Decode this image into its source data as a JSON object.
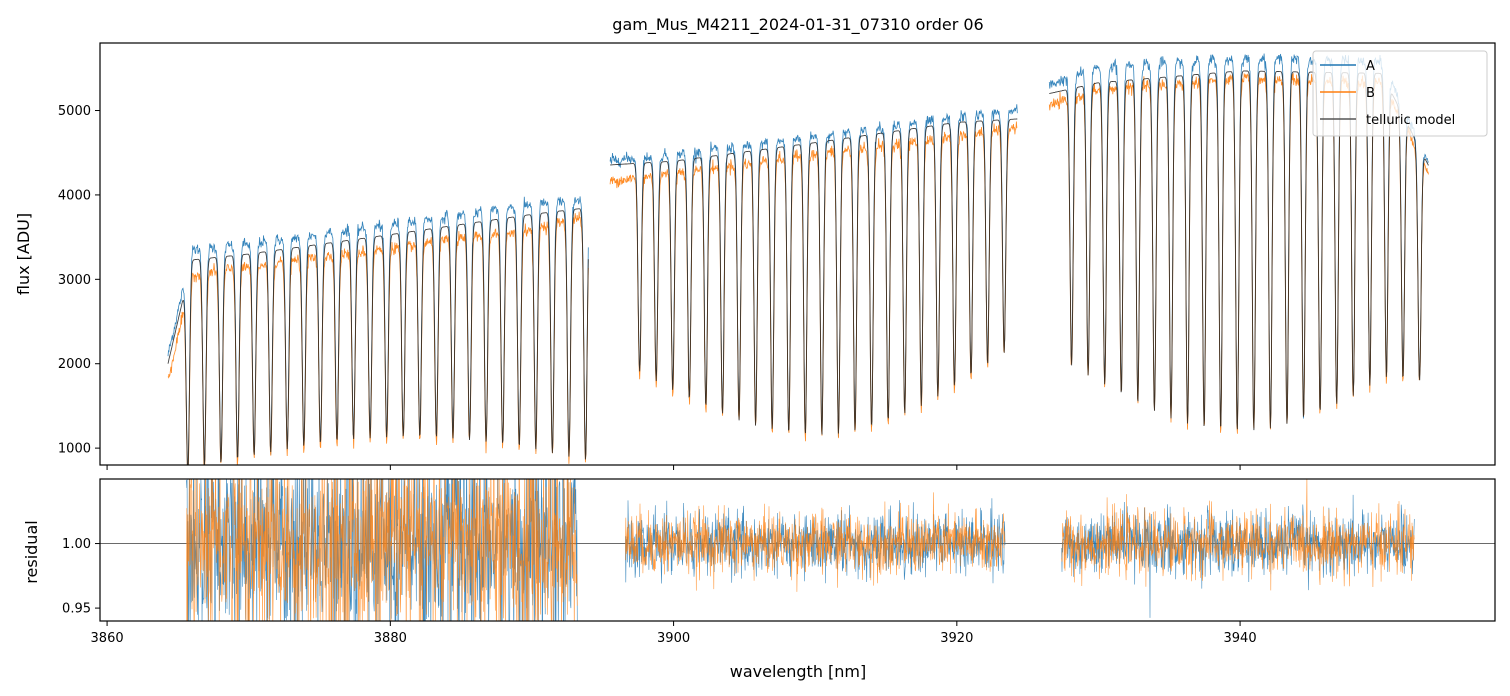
{
  "chart_data": [
    {
      "type": "line",
      "panel": "spectrum",
      "title": "gam_Mus_M4211_2024-01-31_07310  order 06",
      "xlabel": "",
      "ylabel": "flux [ADU]",
      "xlim": [
        3859.5,
        3958.0
      ],
      "ylim": [
        800,
        5800
      ],
      "yticks": [
        1000,
        2000,
        3000,
        4000,
        5000
      ],
      "ytick_labels": [
        "1000",
        "2000",
        "3000",
        "4000",
        "5000"
      ],
      "xticks": [
        3860,
        3880,
        3900,
        3920,
        3940
      ],
      "grid": false,
      "legend_position": "top-right",
      "series": [
        {
          "name": "A",
          "color": "#1f77b4",
          "continuum_x": [
            3864.3,
            3866,
            3870,
            3880,
            3890,
            3894,
            3895,
            3900,
            3910,
            3920,
            3924.3,
            3926.5,
            3930,
            3940,
            3950,
            3953.3
          ],
          "continuum_y": [
            2100,
            3350,
            3420,
            3650,
            3890,
            3960,
            4400,
            4480,
            4690,
            4920,
            5000,
            5300,
            5520,
            5620,
            5580,
            4400
          ]
        },
        {
          "name": "B",
          "color": "#ff7f0e",
          "continuum_x": [
            3864.3,
            3866,
            3870,
            3880,
            3890,
            3894,
            3895,
            3900,
            3910,
            3920,
            3924.3,
            3926.5,
            3930,
            3940,
            3950,
            3953.3
          ],
          "continuum_y": [
            1800,
            3050,
            3150,
            3370,
            3600,
            3760,
            4150,
            4260,
            4480,
            4700,
            4800,
            5050,
            5250,
            5380,
            5330,
            4300
          ]
        },
        {
          "name": "telluric model",
          "color": "#000000",
          "continuum_x": [
            3864.3,
            3866,
            3870,
            3880,
            3890,
            3894,
            3895,
            3900,
            3910,
            3920,
            3924.3,
            3926.5,
            3930,
            3940,
            3950,
            3953.3
          ],
          "continuum_y": [
            2000,
            3230,
            3300,
            3530,
            3770,
            3850,
            4350,
            4400,
            4620,
            4860,
            4900,
            5200,
            5330,
            5470,
            5440,
            4350
          ]
        }
      ],
      "absorption_lines": {
        "segment_1": {
          "start": 3865.0,
          "end": 3893.8,
          "spacing": 1.17
        },
        "segment_2": {
          "start": 3896.9,
          "end": 3923.8,
          "spacing": 1.17
        },
        "segment_3": {
          "start": 3927.4,
          "end": 3953.2,
          "spacing": 1.17
        }
      },
      "gaps": [
        [
          3894.0,
          3895.5
        ],
        [
          3924.3,
          3926.5
        ]
      ]
    },
    {
      "type": "line",
      "panel": "residual",
      "title": "",
      "xlabel": "wavelength [nm]",
      "ylabel": "residual",
      "xlim": [
        3859.5,
        3958.0
      ],
      "ylim": [
        0.94,
        1.05
      ],
      "yticks": [
        0.95,
        1.0
      ],
      "ytick_labels": [
        "0.95",
        "1.00"
      ],
      "xticks": [
        3860,
        3880,
        3900,
        3920,
        3940
      ],
      "xtick_labels": [
        "3860",
        "3880",
        "3900",
        "3920",
        "3940"
      ],
      "reference_line": 1.0,
      "grid": false,
      "series": [
        {
          "name": "A",
          "color": "#1f77b4"
        },
        {
          "name": "B",
          "color": "#ff7f0e"
        }
      ],
      "segments": [
        {
          "start": 3865.6,
          "end": 3893.2,
          "spread": 0.04
        },
        {
          "start": 3896.6,
          "end": 3923.4,
          "spread": 0.012
        },
        {
          "start": 3927.4,
          "end": 3952.3,
          "spread": 0.012
        }
      ]
    }
  ]
}
